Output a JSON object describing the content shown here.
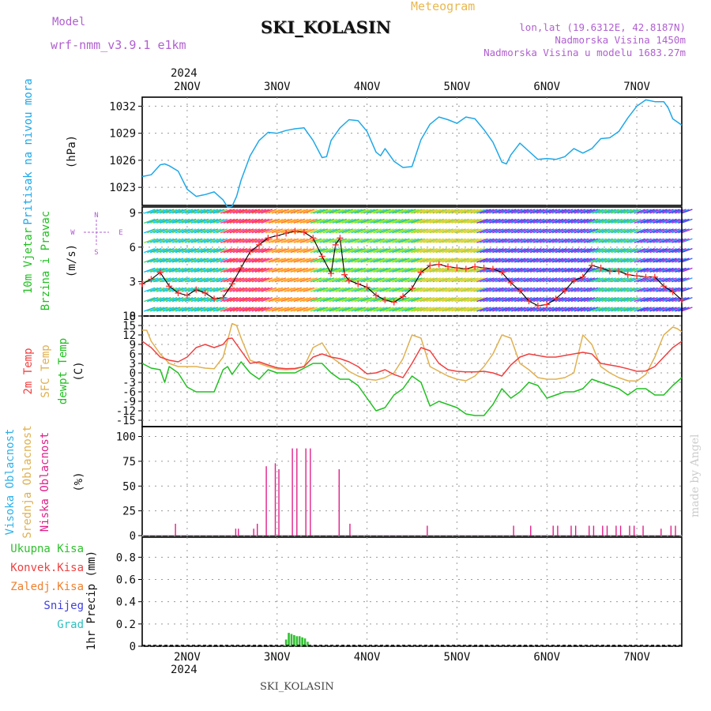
{
  "header": {
    "model_label": "Model",
    "model_name": "wrf-nmm_v3.9.1  e1km",
    "title": "SKI_KOLASIN",
    "meteogram_label": "Meteogram",
    "lonlat": "lon,lat (19.6312E, 42.8187N)",
    "elevation": "Nadmorska Visina 1450m",
    "model_elevation": "Nadmorska Visina u modelu 1683.27m",
    "year": "2024"
  },
  "footer": {
    "station": "SKI_KOLASIN",
    "signature": "made by Angel"
  },
  "colors": {
    "pressure": "#1fa8e8",
    "temp2m": "#f04040",
    "sfc_temp": "#e0b050",
    "dewpoint": "#20c020",
    "cloud_low": "#e0208a",
    "precip_total": "#30c030",
    "grid": "#9a9a9a"
  },
  "days": [
    "2NOV",
    "3NOV",
    "4NOV",
    "5NOV",
    "6NOV",
    "7NOV"
  ],
  "panels": {
    "pressure": {
      "labels": [
        "Pritisak na nivou mora",
        "(hPa)"
      ],
      "ticks": [
        "1032",
        "1029",
        "1026",
        "1023"
      ]
    },
    "wind": {
      "labels": [
        "10m Vjetar",
        "Brzina i Pravac",
        "(m/s)"
      ],
      "compass": [
        "N",
        "W",
        "E",
        "S"
      ],
      "ticks": [
        "9",
        "6",
        "3",
        "0"
      ]
    },
    "temp": {
      "labels": [
        "2m Temp",
        "SFC Temp",
        "dewpt Temp",
        "(C)"
      ],
      "ticks": [
        "18",
        "15",
        "12",
        "9",
        "6",
        "3",
        "0",
        "-3",
        "-6",
        "-9",
        "-12",
        "-15"
      ]
    },
    "cloud": {
      "labels": [
        "Visoka Oblacnost",
        "Srednja Oblacnost",
        "Niska Oblacnost",
        "(%)"
      ],
      "ticks": [
        "100",
        "75",
        "50",
        "25",
        "0"
      ]
    },
    "precip": {
      "labels": [
        "Ukupna Kisa",
        "Konvek.Kisa",
        "Zaledj.Kisa",
        "Snijeg",
        "Grad",
        "1hr Precip (mm)"
      ],
      "ticks": [
        "0.8",
        "0.6",
        "0.4",
        "0.2",
        "0"
      ]
    }
  },
  "chart_data": [
    {
      "type": "line",
      "x_unit": "days since 1 NOV 2024 00:00",
      "x_range": [
        1.5,
        7.5
      ],
      "series": [
        {
          "name": "Pritisak na nivou mora (hPa)",
          "x": [
            1.5,
            1.6,
            1.7,
            1.75,
            1.8,
            1.9,
            2.0,
            2.1,
            2.2,
            2.3,
            2.4,
            2.45,
            2.5,
            2.55,
            2.6,
            2.7,
            2.8,
            2.9,
            3.0,
            3.1,
            3.2,
            3.3,
            3.4,
            3.5,
            3.55,
            3.6,
            3.7,
            3.8,
            3.9,
            4.0,
            4.1,
            4.15,
            4.2,
            4.3,
            4.4,
            4.5,
            4.6,
            4.7,
            4.8,
            4.9,
            5.0,
            5.1,
            5.2,
            5.3,
            5.4,
            5.5,
            5.55,
            5.6,
            5.7,
            5.8,
            5.9,
            6.0,
            6.1,
            6.2,
            6.3,
            6.4,
            6.5,
            6.6,
            6.7,
            6.8,
            6.9,
            7.0,
            7.1,
            7.2,
            7.3,
            7.35,
            7.4,
            7.5
          ],
          "y": [
            1024.2,
            1024.4,
            1025.5,
            1025.6,
            1025.4,
            1024.8,
            1022.8,
            1022.0,
            1022.2,
            1022.5,
            1021.6,
            1020.8,
            1020.9,
            1022.0,
            1023.8,
            1026.5,
            1028.2,
            1029.1,
            1029.0,
            1029.3,
            1029.5,
            1029.6,
            1028.2,
            1026.3,
            1026.4,
            1028.2,
            1029.6,
            1030.5,
            1030.4,
            1029.2,
            1026.9,
            1026.5,
            1027.3,
            1025.9,
            1025.2,
            1025.3,
            1028.3,
            1030.0,
            1030.8,
            1030.5,
            1030.1,
            1030.8,
            1030.6,
            1029.4,
            1028.0,
            1025.8,
            1025.6,
            1026.6,
            1027.9,
            1027.0,
            1026.1,
            1026.2,
            1026.1,
            1026.4,
            1027.3,
            1026.8,
            1027.3,
            1028.4,
            1028.5,
            1029.2,
            1030.7,
            1032.0,
            1032.7,
            1032.5,
            1032.5,
            1031.8,
            1030.6,
            1029.9
          ]
        }
      ],
      "ylim": [
        1021,
        1033
      ]
    },
    {
      "type": "line",
      "x_unit": "days since 1 NOV 2024 00:00",
      "x_range": [
        1.5,
        7.5
      ],
      "series": [
        {
          "name": "10m Vjetar brzina (m/s)",
          "x": [
            1.5,
            1.6,
            1.7,
            1.8,
            1.9,
            2.0,
            2.1,
            2.2,
            2.3,
            2.4,
            2.5,
            2.6,
            2.7,
            2.8,
            2.9,
            3.0,
            3.1,
            3.2,
            3.3,
            3.4,
            3.5,
            3.6,
            3.65,
            3.7,
            3.75,
            3.8,
            3.9,
            4.0,
            4.1,
            4.2,
            4.3,
            4.4,
            4.5,
            4.6,
            4.7,
            4.8,
            4.9,
            5.0,
            5.1,
            5.2,
            5.3,
            5.4,
            5.5,
            5.6,
            5.7,
            5.8,
            5.9,
            6.0,
            6.1,
            6.2,
            6.3,
            6.4,
            6.5,
            6.6,
            6.7,
            6.8,
            6.9,
            7.0,
            7.1,
            7.2,
            7.3,
            7.4,
            7.5
          ],
          "y": [
            2.8,
            3.2,
            3.8,
            2.6,
            2.0,
            1.8,
            2.3,
            2.0,
            1.5,
            1.6,
            2.8,
            4.2,
            5.6,
            6.2,
            6.8,
            7.0,
            7.2,
            7.4,
            7.3,
            6.8,
            5.2,
            3.7,
            6.2,
            6.8,
            3.6,
            3.1,
            2.8,
            2.5,
            1.8,
            1.4,
            1.2,
            1.7,
            2.4,
            3.8,
            4.4,
            4.5,
            4.3,
            4.2,
            4.1,
            4.3,
            4.2,
            4.1,
            3.8,
            2.9,
            2.2,
            1.3,
            0.9,
            1.0,
            1.5,
            2.2,
            3.1,
            3.4,
            4.4,
            4.2,
            3.9,
            3.9,
            3.6,
            3.5,
            3.4,
            3.4,
            2.6,
            2.1,
            1.4
          ]
        }
      ],
      "ylim": [
        0,
        9.5
      ]
    },
    {
      "type": "line",
      "x_unit": "days since 1 NOV 2024 00:00",
      "x_range": [
        1.5,
        7.5
      ],
      "series": [
        {
          "name": "2m Temp",
          "x": [
            1.5,
            1.6,
            1.7,
            1.8,
            1.9,
            2.0,
            2.1,
            2.2,
            2.3,
            2.4,
            2.45,
            2.5,
            2.6,
            2.7,
            2.8,
            2.9,
            3.0,
            3.1,
            3.2,
            3.3,
            3.4,
            3.5,
            3.6,
            3.7,
            3.8,
            3.9,
            4.0,
            4.1,
            4.2,
            4.3,
            4.4,
            4.5,
            4.6,
            4.7,
            4.8,
            4.9,
            5.0,
            5.1,
            5.2,
            5.3,
            5.4,
            5.5,
            5.6,
            5.7,
            5.8,
            5.9,
            6.0,
            6.1,
            6.2,
            6.3,
            6.4,
            6.5,
            6.6,
            6.7,
            6.8,
            6.9,
            7.0,
            7.1,
            7.2,
            7.3,
            7.4,
            7.5
          ],
          "y": [
            10,
            8,
            5,
            4,
            3.5,
            5,
            8,
            9,
            8,
            9,
            10.8,
            11,
            7,
            3,
            3.5,
            2.5,
            1.6,
            1.3,
            1.4,
            2,
            5,
            6,
            5,
            4.5,
            3.5,
            2,
            -0.3,
            0,
            1,
            -0.5,
            -1.5,
            3,
            8,
            7,
            3,
            1,
            0.5,
            0.3,
            0.3,
            0.5,
            0,
            -1,
            2.5,
            5,
            6,
            5.5,
            5,
            5,
            5.5,
            6,
            6.5,
            6,
            3,
            2.5,
            2,
            1.3,
            0.5,
            0.6,
            2,
            5,
            8,
            10
          ]
        },
        {
          "name": "SFC Temp",
          "x": [
            1.5,
            1.55,
            1.6,
            1.7,
            1.8,
            1.9,
            2.0,
            2.1,
            2.2,
            2.3,
            2.4,
            2.5,
            2.55,
            2.6,
            2.7,
            2.8,
            2.9,
            3.0,
            3.1,
            3.2,
            3.3,
            3.4,
            3.5,
            3.6,
            3.7,
            3.8,
            3.9,
            4.0,
            4.1,
            4.2,
            4.3,
            4.4,
            4.5,
            4.6,
            4.7,
            4.8,
            4.9,
            5.0,
            5.1,
            5.2,
            5.3,
            5.4,
            5.5,
            5.6,
            5.7,
            5.8,
            5.9,
            6.0,
            6.1,
            6.2,
            6.3,
            6.4,
            6.5,
            6.6,
            6.7,
            6.8,
            6.9,
            7.0,
            7.1,
            7.2,
            7.3,
            7.4,
            7.45,
            7.5
          ],
          "y": [
            13.5,
            13.5,
            10,
            6,
            3,
            2,
            2,
            2,
            1.5,
            1.3,
            5,
            15.6,
            15,
            11,
            4,
            3,
            2,
            1.2,
            1,
            1.2,
            2,
            8,
            9.5,
            5,
            3,
            0.5,
            -1,
            -2,
            -2.3,
            -1.5,
            0,
            4.5,
            12,
            11,
            2,
            0.5,
            -1,
            -2,
            -2.5,
            -1,
            2,
            6,
            12,
            11,
            3,
            1,
            -1.5,
            -2,
            -2,
            -1.5,
            0,
            12,
            9,
            2,
            0,
            -1.5,
            -2.5,
            -2.6,
            -0.5,
            5,
            12,
            14.5,
            14,
            13
          ]
        },
        {
          "name": "dewpt Temp",
          "x": [
            1.5,
            1.6,
            1.7,
            1.75,
            1.8,
            1.9,
            2.0,
            2.1,
            2.2,
            2.3,
            2.4,
            2.45,
            2.5,
            2.6,
            2.7,
            2.8,
            2.9,
            3.0,
            3.1,
            3.2,
            3.3,
            3.4,
            3.5,
            3.6,
            3.7,
            3.8,
            3.9,
            4.0,
            4.1,
            4.2,
            4.3,
            4.4,
            4.5,
            4.6,
            4.7,
            4.8,
            4.9,
            5.0,
            5.1,
            5.2,
            5.3,
            5.4,
            5.5,
            5.6,
            5.7,
            5.8,
            5.9,
            6.0,
            6.1,
            6.2,
            6.3,
            6.4,
            6.5,
            6.6,
            6.7,
            6.8,
            6.9,
            7.0,
            7.1,
            7.2,
            7.3,
            7.4,
            7.5
          ],
          "y": [
            3,
            1.5,
            1,
            -3,
            2,
            0,
            -4.5,
            -6,
            -6,
            -6,
            1,
            2,
            -0.5,
            3.5,
            0,
            -2,
            1,
            0,
            0,
            0,
            1.5,
            3,
            3,
            0,
            -2,
            -2,
            -4,
            -8,
            -12,
            -11,
            -7,
            -5,
            -1,
            -3,
            -10.5,
            -9,
            -10,
            -11,
            -13,
            -13.5,
            -13.5,
            -10,
            -5,
            -8,
            -6,
            -3,
            -4,
            -8,
            -7,
            -6,
            -6,
            -5,
            -2,
            -3,
            -4,
            -5,
            -7,
            -5,
            -5,
            -7,
            -7,
            -4,
            -1.5
          ]
        }
      ],
      "ylim": [
        -17,
        18
      ]
    },
    {
      "type": "bar",
      "x_unit": "days since 1 NOV 2024 00:00",
      "x_range": [
        1.5,
        7.5
      ],
      "series": [
        {
          "name": "Niska Oblacnost",
          "x": [
            1.87,
            2.54,
            2.57,
            2.74,
            2.78,
            2.88,
            2.98,
            3.02,
            3.17,
            3.22,
            3.32,
            3.37,
            3.69,
            3.81,
            4.67,
            5.63,
            5.82,
            6.07,
            6.12,
            6.27,
            6.32,
            6.47,
            6.52,
            6.62,
            6.67,
            6.77,
            6.82,
            6.92,
            6.97,
            7.07,
            7.27,
            7.38,
            7.43
          ],
          "y": [
            12,
            7,
            7,
            7,
            12,
            70,
            73,
            67,
            88,
            88,
            88,
            88,
            67,
            12,
            10,
            10,
            10,
            10,
            10,
            10,
            10,
            10,
            10,
            10,
            10,
            10,
            10,
            10,
            10,
            10,
            7,
            10,
            10
          ]
        }
      ],
      "ylim": [
        0,
        110
      ]
    },
    {
      "type": "bar",
      "x_unit": "days since 1 NOV 2024 00:00",
      "x_range": [
        1.5,
        7.5
      ],
      "series": [
        {
          "name": "Ukupna Kisa",
          "x": [
            3.07,
            3.1,
            3.13,
            3.16,
            3.19,
            3.22,
            3.25,
            3.28,
            3.31,
            3.34,
            3.37
          ],
          "y": [
            0.01,
            0.06,
            0.12,
            0.11,
            0.1,
            0.09,
            0.09,
            0.08,
            0.07,
            0.04,
            0.01
          ]
        }
      ],
      "ylim": [
        0,
        0.98
      ]
    }
  ]
}
